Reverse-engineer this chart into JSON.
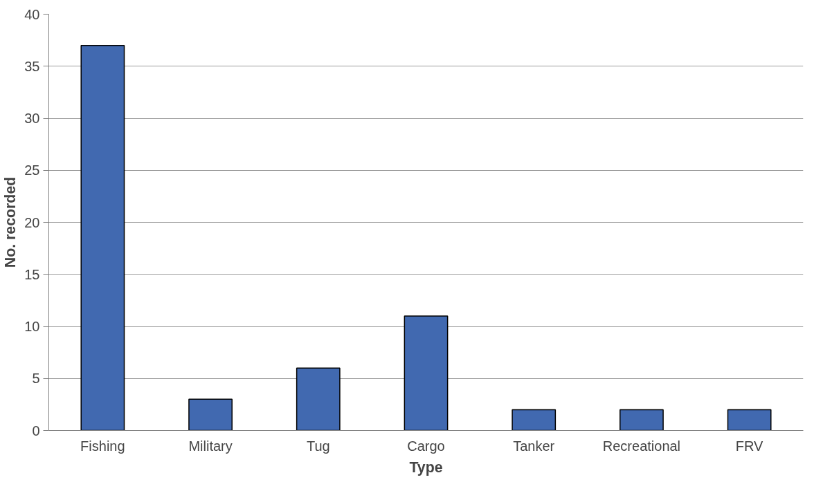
{
  "chart_data": {
    "type": "bar",
    "xlabel": "Type",
    "ylabel": "No. recorded",
    "categories": [
      "Fishing",
      "Military",
      "Tug",
      "Cargo",
      "Tanker",
      "Recreational",
      "FRV"
    ],
    "values": [
      37,
      3,
      6,
      11,
      2,
      2,
      2
    ],
    "color": "#4169b0",
    "ylim": [
      0,
      40
    ],
    "yticks": [
      0,
      5,
      10,
      15,
      20,
      25,
      30,
      35,
      40
    ],
    "grid": "y"
  }
}
